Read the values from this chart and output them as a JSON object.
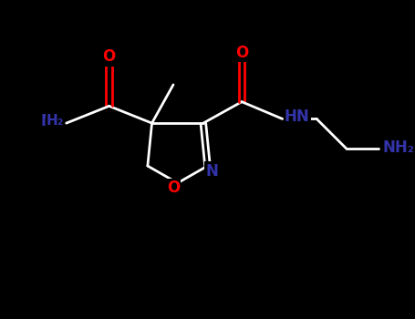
{
  "bg_color": "#000000",
  "bond_color": "#ffffff",
  "O_color": "#ff0000",
  "N_color": "#3333aa",
  "figsize": [
    4.55,
    3.5
  ],
  "dpi": 100,
  "xlim": [
    0,
    9.1
  ],
  "ylim": [
    0,
    7.0
  ]
}
